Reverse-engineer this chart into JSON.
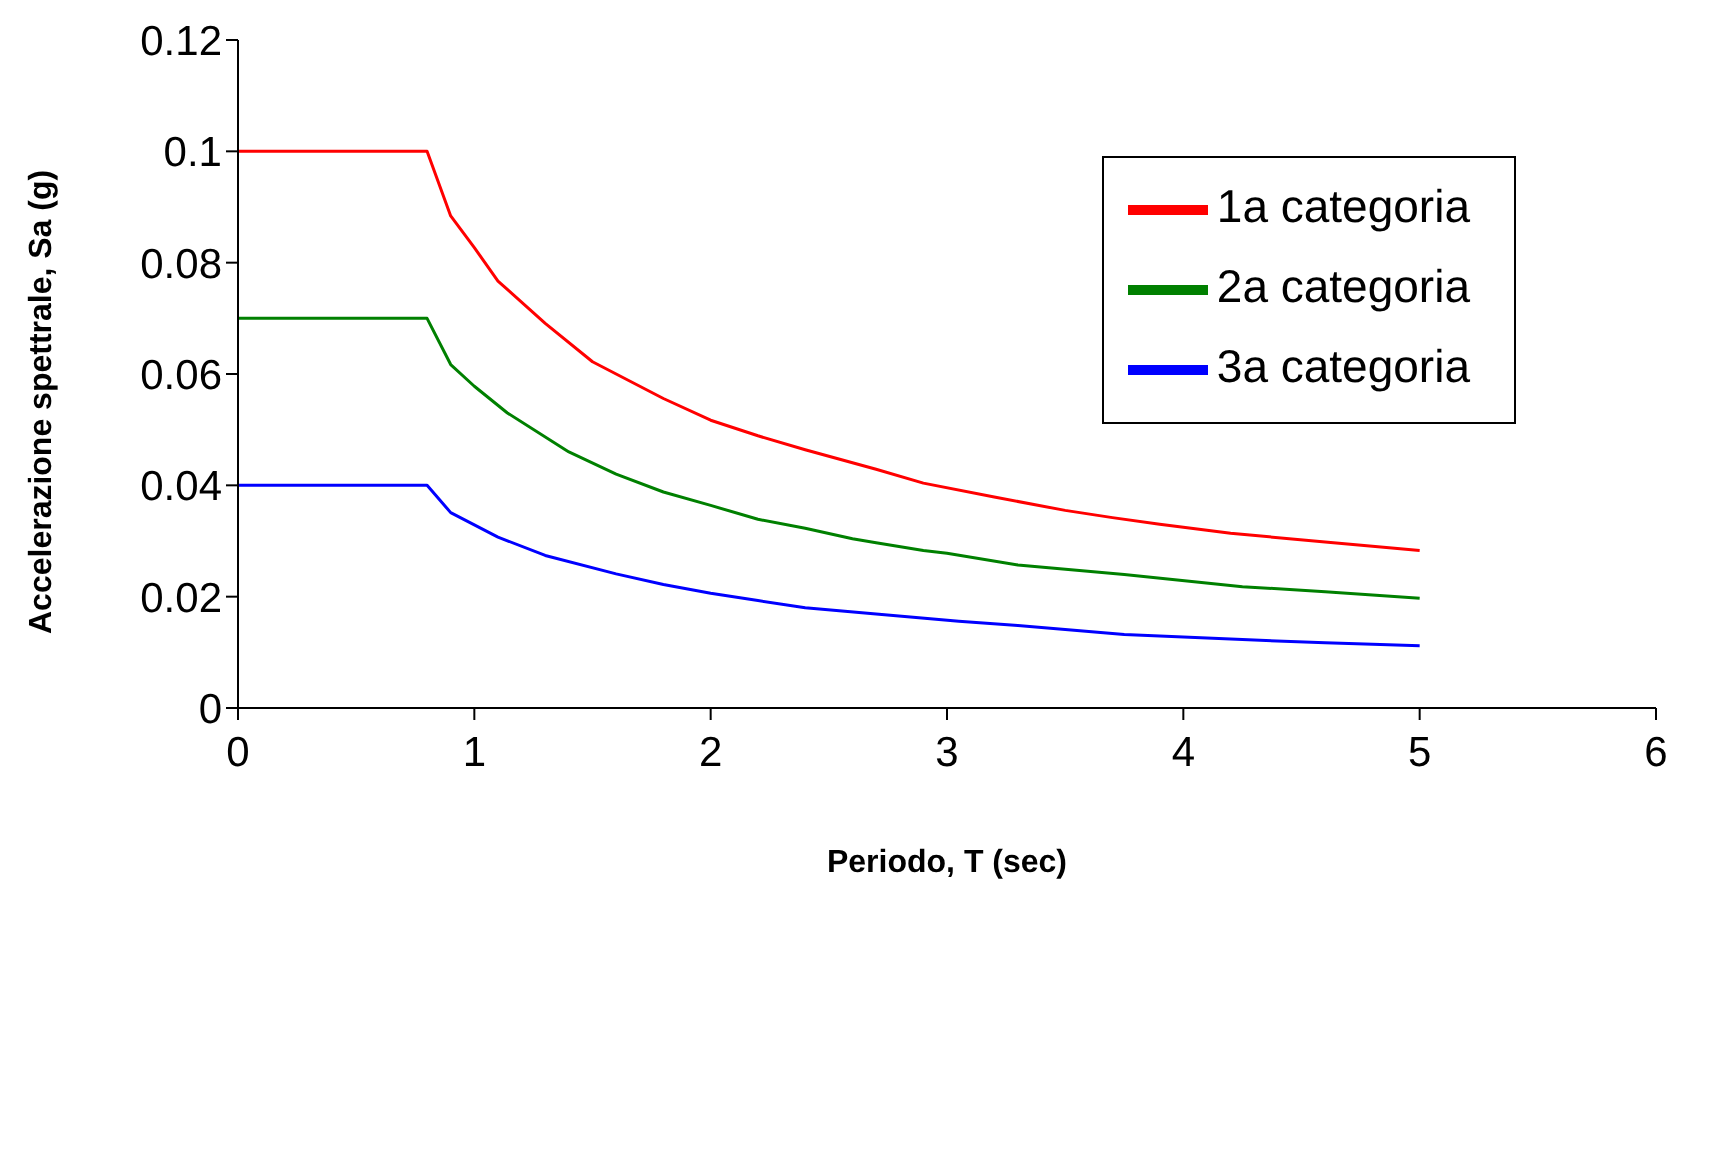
{
  "chart_data": {
    "type": "line",
    "xlabel": "Periodo, T (sec)",
    "ylabel": "Accelerazione spettrale, Sa (g)",
    "xlim": [
      0,
      6
    ],
    "xticks": [
      0,
      1,
      2,
      3,
      4,
      5,
      6
    ],
    "ylim": [
      0,
      0.12
    ],
    "yticks": [
      0,
      0.02,
      0.04,
      0.06,
      0.08,
      0.1,
      0.12
    ],
    "grid": false,
    "legend": "top right",
    "marker": "none",
    "line_style": "solid",
    "series": [
      {
        "name": "1a categoria",
        "color": "#ff0000",
        "x": [
          0,
          0.8,
          0.9,
          1.0,
          1.1,
          1.3,
          1.5,
          1.8,
          2.0,
          2.2,
          2.4,
          2.7,
          2.9,
          3.2,
          3.5,
          3.7,
          3.9,
          4.2,
          4.6,
          5.0
        ],
        "values": [
          0.1,
          0.1,
          0.0884,
          0.0827,
          0.0767,
          0.0691,
          0.0622,
          0.0556,
          0.0517,
          0.0489,
          0.0464,
          0.0429,
          0.0404,
          0.0379,
          0.0355,
          0.0342,
          0.033,
          0.0314,
          0.0298,
          0.0283
        ]
      },
      {
        "name": "2a categoria",
        "color": "#008000",
        "x": [
          0,
          0.8,
          0.9,
          1.0,
          1.14,
          1.4,
          1.6,
          1.8,
          2.0,
          2.2,
          2.4,
          2.6,
          2.7,
          2.9,
          3.0,
          3.3,
          3.75,
          4.25,
          4.6,
          5.0
        ],
        "values": [
          0.07,
          0.07,
          0.0617,
          0.0578,
          0.053,
          0.046,
          0.042,
          0.0388,
          0.0364,
          0.0339,
          0.0323,
          0.0304,
          0.0297,
          0.0283,
          0.0278,
          0.0257,
          0.024,
          0.0218,
          0.0209,
          0.0197
        ]
      },
      {
        "name": "3a categoria",
        "color": "#0000ff",
        "x": [
          0,
          0.8,
          0.9,
          1.0,
          1.1,
          1.3,
          1.6,
          1.8,
          2.0,
          2.2,
          2.4,
          2.7,
          3.05,
          3.3,
          3.75,
          4.25,
          4.6,
          5.0
        ],
        "values": [
          0.04,
          0.04,
          0.0351,
          0.0329,
          0.0307,
          0.0274,
          0.0241,
          0.0222,
          0.0206,
          0.0193,
          0.018,
          0.0169,
          0.0156,
          0.0148,
          0.0132,
          0.0123,
          0.0117,
          0.0112
        ]
      }
    ]
  }
}
